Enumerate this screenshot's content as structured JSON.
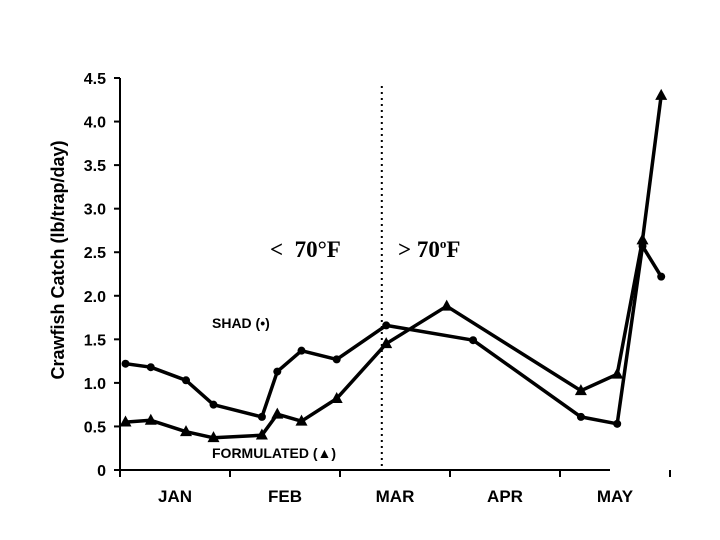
{
  "chart_data": {
    "type": "line",
    "ylabel": "Crawfish Catch (lb/trap/day)",
    "ylim": [
      0,
      4.5
    ],
    "yticks": [
      "0",
      "0.5",
      "1.0",
      "1.5",
      "2.0",
      "2.5",
      "3.0",
      "3.5",
      "4.0",
      "4.5"
    ],
    "months": [
      "JAN",
      "FEB",
      "MAR",
      "APR",
      "MAY"
    ],
    "annotations": {
      "cold": "<  70°F",
      "warm_prefix": "> 70",
      "warm_sup": "o",
      "warm_suffix": "F"
    },
    "threshold_line": "dotted vertical separating the periods below and above 70°F",
    "series": [
      {
        "name": "SHAD (•)",
        "marker": "circle",
        "points": [
          {
            "month": 0.05,
            "y": 1.22
          },
          {
            "month": 0.28,
            "y": 1.18
          },
          {
            "month": 0.6,
            "y": 1.03
          },
          {
            "month": 0.85,
            "y": 0.75
          },
          {
            "month": 1.29,
            "y": 0.61
          },
          {
            "month": 1.43,
            "y": 1.13
          },
          {
            "month": 1.65,
            "y": 1.37
          },
          {
            "month": 1.97,
            "y": 1.27
          },
          {
            "month": 2.42,
            "y": 1.66
          },
          {
            "month": 3.21,
            "y": 1.49
          },
          {
            "month": 4.19,
            "y": 0.61
          },
          {
            "month": 4.52,
            "y": 0.53
          },
          {
            "month": 4.75,
            "y": 2.57
          },
          {
            "month": 4.92,
            "y": 2.22
          }
        ]
      },
      {
        "name": "FORMULATED (▲)",
        "marker": "triangle",
        "points": [
          {
            "month": 0.05,
            "y": 0.55
          },
          {
            "month": 0.28,
            "y": 0.57
          },
          {
            "month": 0.6,
            "y": 0.44
          },
          {
            "month": 0.85,
            "y": 0.37
          },
          {
            "month": 1.29,
            "y": 0.4
          },
          {
            "month": 1.43,
            "y": 0.64
          },
          {
            "month": 1.65,
            "y": 0.56
          },
          {
            "month": 1.97,
            "y": 0.82
          },
          {
            "month": 2.42,
            "y": 1.45
          },
          {
            "month": 2.97,
            "y": 1.88
          },
          {
            "month": 4.19,
            "y": 0.91
          },
          {
            "month": 4.52,
            "y": 1.1
          },
          {
            "month": 4.75,
            "y": 2.64
          },
          {
            "month": 4.92,
            "y": 4.3
          }
        ]
      }
    ]
  }
}
